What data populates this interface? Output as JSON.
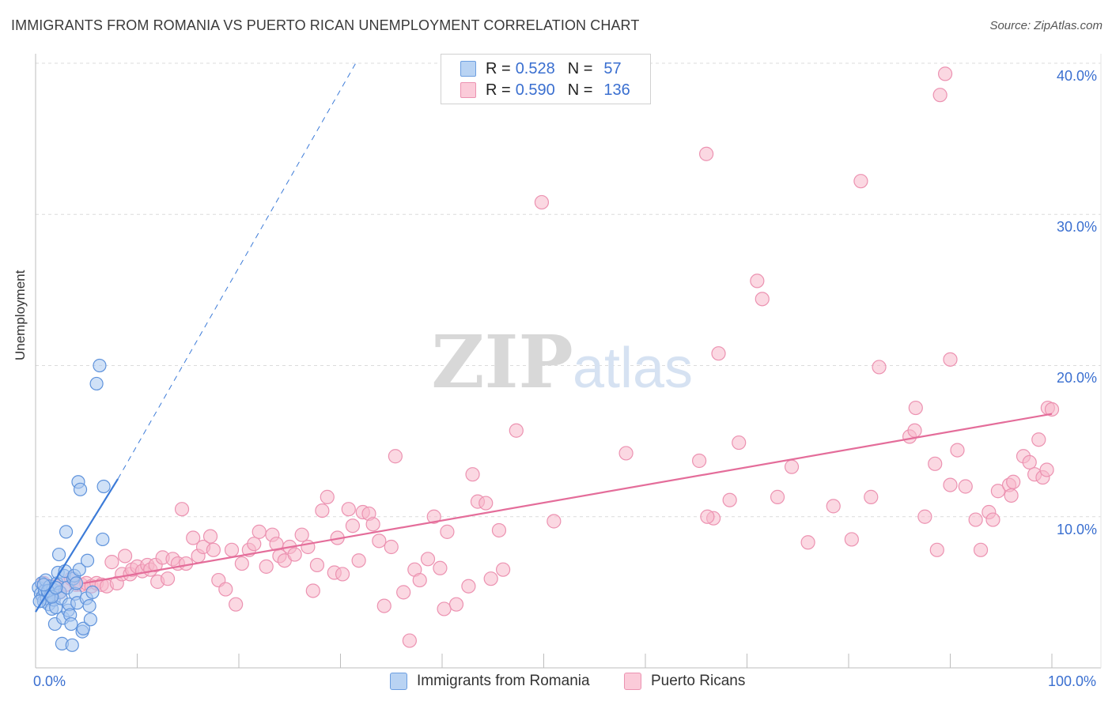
{
  "title": "IMMIGRANTS FROM ROMANIA VS PUERTO RICAN UNEMPLOYMENT CORRELATION CHART",
  "source": "Source: ZipAtlas.com",
  "watermark": {
    "zip": "ZIP",
    "atlas": "atlas"
  },
  "legend_top": {
    "rows": [
      {
        "r_label": "R =",
        "r_value": "0.528",
        "n_label": "N =",
        "n_value": "57",
        "color": "#a9c8f0"
      },
      {
        "r_label": "R =",
        "r_value": "0.590",
        "n_label": "N =",
        "n_value": "136",
        "color": "#f7b8cb"
      }
    ]
  },
  "legend_bottom": {
    "romania": "Immigrants from Romania",
    "puerto": "Puerto Ricans"
  },
  "axis": {
    "ylabel": "Unemployment",
    "x_min_label": "0.0%",
    "x_max_label": "100.0%",
    "y_ticks": [
      "10.0%",
      "20.0%",
      "30.0%",
      "40.0%"
    ]
  },
  "chart_data": {
    "type": "scatter",
    "xlim": [
      0,
      100
    ],
    "ylim": [
      0,
      40
    ],
    "grid": true,
    "colors": {
      "romania": "#3c7bd8",
      "puerto": "#e46d9a",
      "romania_fill": "#a9c8f0",
      "puerto_fill": "#f7b8cb"
    },
    "series": [
      {
        "name": "Immigrants from Romania",
        "trend": {
          "x": [
            0,
            8.1
          ],
          "y": [
            3.7,
            12.5
          ],
          "extended_x": [
            8.1,
            31.5
          ],
          "extended_y": [
            12.5,
            40.0
          ]
        },
        "points": [
          [
            0.3,
            5.3
          ],
          [
            0.5,
            4.9
          ],
          [
            0.6,
            5.6
          ],
          [
            0.7,
            4.7
          ],
          [
            0.8,
            4.4
          ],
          [
            0.9,
            5.1
          ],
          [
            1.0,
            5.8
          ],
          [
            1.1,
            4.6
          ],
          [
            1.2,
            5.0
          ],
          [
            1.3,
            4.2
          ],
          [
            1.4,
            5.4
          ],
          [
            1.5,
            4.8
          ],
          [
            1.6,
            3.9
          ],
          [
            1.7,
            5.2
          ],
          [
            1.8,
            4.5
          ],
          [
            1.9,
            2.9
          ],
          [
            2.0,
            4.0
          ],
          [
            2.1,
            5.6
          ],
          [
            2.2,
            6.3
          ],
          [
            2.3,
            7.5
          ],
          [
            2.4,
            5.0
          ],
          [
            2.5,
            4.6
          ],
          [
            2.6,
            1.6
          ],
          [
            2.7,
            3.3
          ],
          [
            2.8,
            6.1
          ],
          [
            2.9,
            6.4
          ],
          [
            3.0,
            9.0
          ],
          [
            3.1,
            5.3
          ],
          [
            3.2,
            3.8
          ],
          [
            3.3,
            4.2
          ],
          [
            3.4,
            3.5
          ],
          [
            3.5,
            2.9
          ],
          [
            3.6,
            1.5
          ],
          [
            3.7,
            5.9
          ],
          [
            3.8,
            6.1
          ],
          [
            3.9,
            4.9
          ],
          [
            4.0,
            5.6
          ],
          [
            4.1,
            4.3
          ],
          [
            4.2,
            12.3
          ],
          [
            4.3,
            6.5
          ],
          [
            4.4,
            11.8
          ],
          [
            4.6,
            2.4
          ],
          [
            4.7,
            2.6
          ],
          [
            5.0,
            4.6
          ],
          [
            5.1,
            7.1
          ],
          [
            5.3,
            4.1
          ],
          [
            5.4,
            3.2
          ],
          [
            5.6,
            5.0
          ],
          [
            6.3,
            20.0
          ],
          [
            6.0,
            18.8
          ],
          [
            6.6,
            8.5
          ],
          [
            6.7,
            12.0
          ],
          [
            1.2,
            5.1
          ],
          [
            0.8,
            5.5
          ],
          [
            1.6,
            4.7
          ],
          [
            2.0,
            5.3
          ],
          [
            0.4,
            4.4
          ]
        ]
      },
      {
        "name": "Puerto Ricans",
        "trend": {
          "x": [
            4.7,
            100
          ],
          "y": [
            5.6,
            16.8
          ]
        },
        "points": [
          [
            0.8,
            5.6
          ],
          [
            1.2,
            5.1
          ],
          [
            1.6,
            4.8
          ],
          [
            2.0,
            5.4
          ],
          [
            2.4,
            5.0
          ],
          [
            3.0,
            5.5
          ],
          [
            3.5,
            5.9
          ],
          [
            4.0,
            5.5
          ],
          [
            4.5,
            5.5
          ],
          [
            5.0,
            5.6
          ],
          [
            5.5,
            5.4
          ],
          [
            6.0,
            5.6
          ],
          [
            6.5,
            5.5
          ],
          [
            7.0,
            5.4
          ],
          [
            7.5,
            7.0
          ],
          [
            8.0,
            5.6
          ],
          [
            8.5,
            6.2
          ],
          [
            8.8,
            7.4
          ],
          [
            9.3,
            6.2
          ],
          [
            9.5,
            6.5
          ],
          [
            10.0,
            6.7
          ],
          [
            10.5,
            6.4
          ],
          [
            11.0,
            6.8
          ],
          [
            11.3,
            6.5
          ],
          [
            11.8,
            6.8
          ],
          [
            12.0,
            5.7
          ],
          [
            12.5,
            7.3
          ],
          [
            13.0,
            5.9
          ],
          [
            13.5,
            7.2
          ],
          [
            14.0,
            6.9
          ],
          [
            14.4,
            10.5
          ],
          [
            14.8,
            6.9
          ],
          [
            15.5,
            8.6
          ],
          [
            16.0,
            7.4
          ],
          [
            16.5,
            8.0
          ],
          [
            17.2,
            8.7
          ],
          [
            17.5,
            7.8
          ],
          [
            18.0,
            5.8
          ],
          [
            18.7,
            5.2
          ],
          [
            19.3,
            7.8
          ],
          [
            19.7,
            4.2
          ],
          [
            20.3,
            6.9
          ],
          [
            21.0,
            7.8
          ],
          [
            21.5,
            8.2
          ],
          [
            22.0,
            9.0
          ],
          [
            22.7,
            6.7
          ],
          [
            23.3,
            8.8
          ],
          [
            23.7,
            8.2
          ],
          [
            24.0,
            7.4
          ],
          [
            24.5,
            7.1
          ],
          [
            25.0,
            8.0
          ],
          [
            25.5,
            7.5
          ],
          [
            26.2,
            8.8
          ],
          [
            26.8,
            8.0
          ],
          [
            27.3,
            5.1
          ],
          [
            27.7,
            6.8
          ],
          [
            28.2,
            10.4
          ],
          [
            28.7,
            11.3
          ],
          [
            29.4,
            6.3
          ],
          [
            29.7,
            8.6
          ],
          [
            30.2,
            6.2
          ],
          [
            30.8,
            10.5
          ],
          [
            31.2,
            9.4
          ],
          [
            31.8,
            7.1
          ],
          [
            32.2,
            10.3
          ],
          [
            32.8,
            10.2
          ],
          [
            33.2,
            9.5
          ],
          [
            33.8,
            8.4
          ],
          [
            34.3,
            4.1
          ],
          [
            35.0,
            8.0
          ],
          [
            35.4,
            14.0
          ],
          [
            36.2,
            5.0
          ],
          [
            36.8,
            1.8
          ],
          [
            37.3,
            6.5
          ],
          [
            37.8,
            5.8
          ],
          [
            38.6,
            7.2
          ],
          [
            39.2,
            10.0
          ],
          [
            39.8,
            6.6
          ],
          [
            40.2,
            3.9
          ],
          [
            40.5,
            9.0
          ],
          [
            41.4,
            4.2
          ],
          [
            42.6,
            5.4
          ],
          [
            43.0,
            12.8
          ],
          [
            43.5,
            11.0
          ],
          [
            44.3,
            10.9
          ],
          [
            44.8,
            5.9
          ],
          [
            45.6,
            9.1
          ],
          [
            46.0,
            6.5
          ],
          [
            47.3,
            15.7
          ],
          [
            49.8,
            30.8
          ],
          [
            51.0,
            9.7
          ],
          [
            58.1,
            14.2
          ],
          [
            65.3,
            13.7
          ],
          [
            66.7,
            9.9
          ],
          [
            66.1,
            10.0
          ],
          [
            66.0,
            34.0
          ],
          [
            67.2,
            20.8
          ],
          [
            68.3,
            11.1
          ],
          [
            69.2,
            14.9
          ],
          [
            71.0,
            25.6
          ],
          [
            71.5,
            24.4
          ],
          [
            73.0,
            11.3
          ],
          [
            74.4,
            13.3
          ],
          [
            76.0,
            8.3
          ],
          [
            78.5,
            10.7
          ],
          [
            80.3,
            8.5
          ],
          [
            81.2,
            32.2
          ],
          [
            82.2,
            11.3
          ],
          [
            83.0,
            19.9
          ],
          [
            86.0,
            15.3
          ],
          [
            86.5,
            15.7
          ],
          [
            86.6,
            17.2
          ],
          [
            87.5,
            10.0
          ],
          [
            88.5,
            13.5
          ],
          [
            88.7,
            7.8
          ],
          [
            89.0,
            37.9
          ],
          [
            89.5,
            39.3
          ],
          [
            90.0,
            20.4
          ],
          [
            90.7,
            14.4
          ],
          [
            90.0,
            12.1
          ],
          [
            91.5,
            12.0
          ],
          [
            92.5,
            9.8
          ],
          [
            93.0,
            7.8
          ],
          [
            93.8,
            10.3
          ],
          [
            94.2,
            9.8
          ],
          [
            94.7,
            11.7
          ],
          [
            95.8,
            12.1
          ],
          [
            96.0,
            11.4
          ],
          [
            96.2,
            12.3
          ],
          [
            97.2,
            14.0
          ],
          [
            97.8,
            13.6
          ],
          [
            98.3,
            12.8
          ],
          [
            98.7,
            15.1
          ],
          [
            99.1,
            12.6
          ],
          [
            99.5,
            13.1
          ],
          [
            99.6,
            17.2
          ],
          [
            100.0,
            17.1
          ]
        ]
      }
    ]
  }
}
